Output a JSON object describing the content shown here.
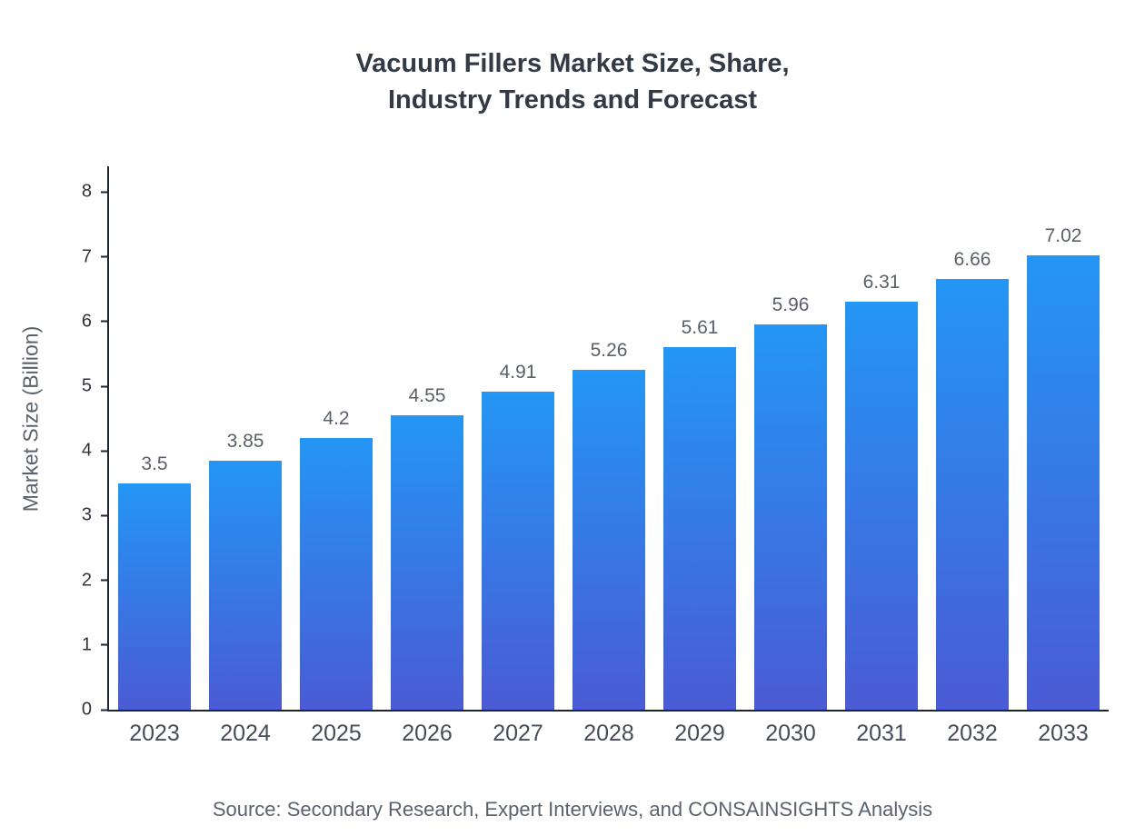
{
  "title": {
    "line1": "Vacuum Fillers Market Size, Share,",
    "line2": "Industry Trends and Forecast"
  },
  "source": "Source: Secondary Research, Expert Interviews, and CONSAINSIGHTS Analysis",
  "chart_data": {
    "type": "bar",
    "title": "Vacuum Fillers Market Size, Share, Industry Trends and Forecast",
    "categories": [
      "2023",
      "2024",
      "2025",
      "2026",
      "2027",
      "2028",
      "2029",
      "2030",
      "2031",
      "2032",
      "2033"
    ],
    "values": [
      3.5,
      3.85,
      4.2,
      4.55,
      4.91,
      5.26,
      5.61,
      5.96,
      6.31,
      6.66,
      7.02
    ],
    "xlabel": "",
    "ylabel": "Market Size (Billion)",
    "ylim": [
      0,
      8
    ],
    "yticks": [
      0,
      1,
      2,
      3,
      4,
      5,
      6,
      7,
      8
    ],
    "grid": false,
    "legend": false,
    "bar_color_top": "#2496f5",
    "bar_color_bottom": "#4a5bd4",
    "axis_color": "#1d2530"
  }
}
